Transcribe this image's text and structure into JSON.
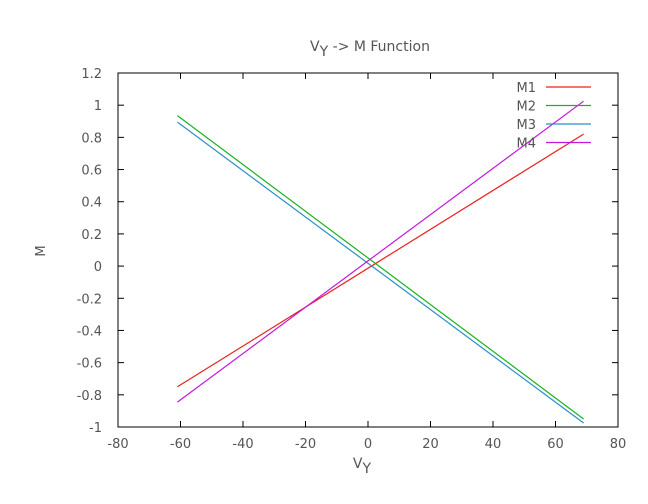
{
  "chart_data": {
    "type": "line",
    "title": {
      "prefix": "V",
      "subscript": "Y",
      "rest": " -> M Function"
    },
    "xlabel": {
      "main": "V",
      "subscript": "Y"
    },
    "ylabel": "M",
    "xlim": [
      -80,
      80
    ],
    "ylim": [
      -1,
      1.2
    ],
    "xticks": [
      "-80",
      "-60",
      "-40",
      "-20",
      "0",
      "20",
      "40",
      "60",
      "80"
    ],
    "yticks": [
      "-1",
      "-0.8",
      "-0.6",
      "-0.4",
      "-0.2",
      "0",
      "0.2",
      "0.4",
      "0.6",
      "0.8",
      "1",
      "1.2"
    ],
    "grid": false,
    "legend_position": "top-right",
    "series": [
      {
        "name": "M1",
        "color": "#e8241e",
        "x": [
          -61,
          69
        ],
        "y": [
          -0.75,
          0.82
        ]
      },
      {
        "name": "M2",
        "color": "#17b31e",
        "x": [
          -61,
          69
        ],
        "y": [
          0.935,
          -0.95
        ]
      },
      {
        "name": "M3",
        "color": "#2a8fc8",
        "x": [
          -61,
          69
        ],
        "y": [
          0.895,
          -0.975
        ]
      },
      {
        "name": "M4",
        "color": "#c418e0",
        "x": [
          -61,
          69
        ],
        "y": [
          -0.845,
          1.025
        ]
      }
    ]
  }
}
